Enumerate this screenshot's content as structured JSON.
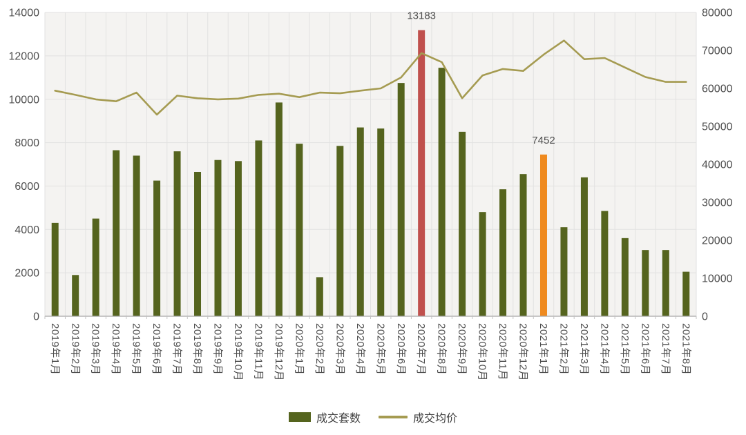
{
  "chart_data": {
    "type": "bar",
    "subtype": "bar+line combo",
    "title": "",
    "categories": [
      "2019年1月",
      "2019年2月",
      "2019年3月",
      "2019年4月",
      "2019年5月",
      "2019年6月",
      "2019年7月",
      "2019年8月",
      "2019年9月",
      "2019年10月",
      "2019年11月",
      "2019年12月",
      "2020年1月",
      "2020年2月",
      "2020年3月",
      "2020年4月",
      "2020年5月",
      "2020年6月",
      "2020年7月",
      "2020年8月",
      "2020年9月",
      "2020年10月",
      "2020年11月",
      "2020年12月",
      "2021年1月",
      "2021年2月",
      "2021年3月",
      "2021年4月",
      "2021年5月",
      "2021年6月",
      "2021年7月",
      "2021年8月"
    ],
    "series": [
      {
        "name": "成交套数",
        "type": "bar",
        "axis": "left",
        "color": "#55641e",
        "values": [
          4300,
          1900,
          4500,
          7650,
          7400,
          6250,
          7600,
          6650,
          7200,
          7150,
          8100,
          9850,
          7950,
          1800,
          7850,
          8700,
          8650,
          10750,
          13183,
          11450,
          8500,
          4800,
          5850,
          6550,
          7452,
          4100,
          6400,
          4850,
          3600,
          3050,
          3050,
          2050
        ]
      },
      {
        "name": "成交均价",
        "type": "line",
        "axis": "right",
        "color": "#a59b51",
        "values": [
          59400,
          58300,
          57100,
          56600,
          58900,
          53100,
          58100,
          57400,
          57100,
          57300,
          58300,
          58600,
          57700,
          58900,
          58700,
          59400,
          60000,
          62900,
          69300,
          66900,
          57400,
          63400,
          65100,
          64600,
          68900,
          72600,
          67700,
          68000,
          65500,
          63000,
          61700,
          61700
        ]
      }
    ],
    "highlights": [
      {
        "index": 18,
        "color": "#c0504d",
        "label": "13183"
      },
      {
        "index": 24,
        "color": "#ef8a1f",
        "label": "7452"
      }
    ],
    "left_axis": {
      "min": 0,
      "max": 14000,
      "step": 2000
    },
    "right_axis": {
      "min": 0,
      "max": 80000,
      "step": 10000
    },
    "grid": true,
    "legend_position": "bottom",
    "plot_bg": "#f4f3f1",
    "grid_color": "#e2e2e1",
    "axis_line_color": "#a6a6a6"
  }
}
